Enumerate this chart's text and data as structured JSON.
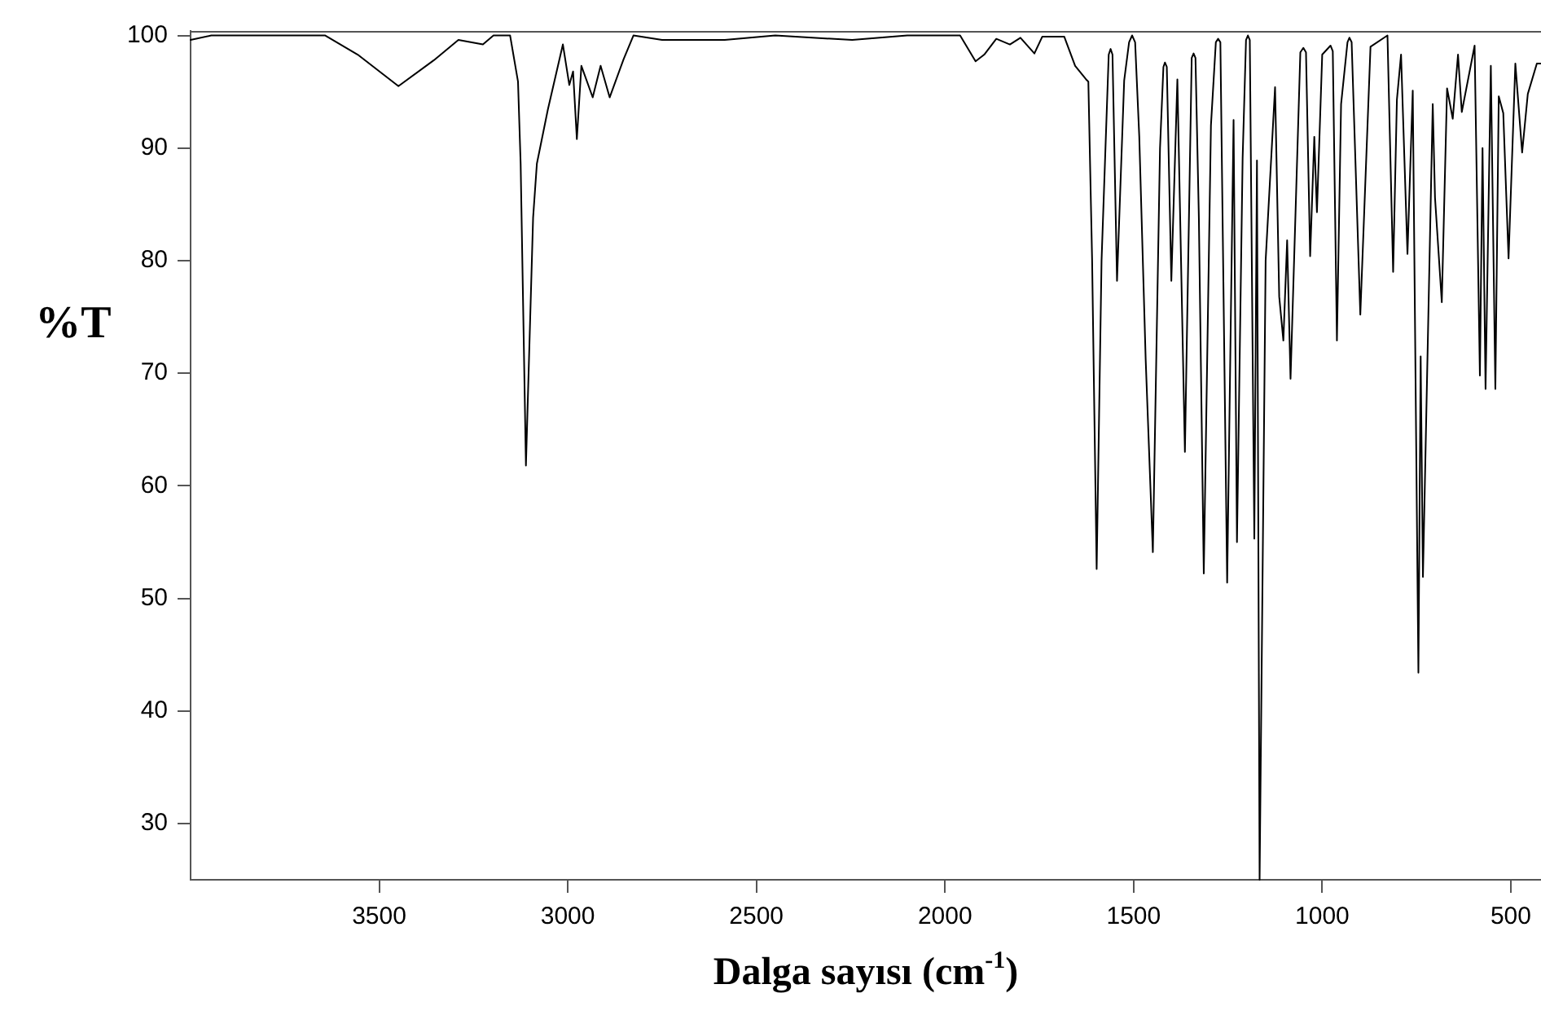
{
  "chart_data": {
    "type": "line",
    "xlabel": "Dalga sayısı (cm$^{-1}$)",
    "ylabel": "%T",
    "xlim": [
      4000,
      420
    ],
    "ylim": [
      25,
      100.4
    ],
    "xticks": [
      3500,
      3000,
      2500,
      2000,
      1500,
      1000,
      500
    ],
    "yticks": [
      30,
      40,
      50,
      60,
      70,
      80,
      90,
      100
    ],
    "grid": false,
    "legend": false,
    "marker": "none",
    "line_style": "solid",
    "series": [
      {
        "color": "#000000",
        "x": [
          4000,
          3945,
          3800,
          3643,
          3557,
          3449,
          3355,
          3290,
          3225,
          3197,
          3153,
          3132,
          3125,
          3111,
          3092,
          3082,
          3053,
          3013,
          2996,
          2986,
          2976,
          2964,
          2934,
          2913,
          2889,
          2852,
          2826,
          2750,
          2654,
          2584,
          2450,
          2246,
          2100,
          1960,
          1919,
          1896,
          1864,
          1828,
          1800,
          1763,
          1742,
          1684,
          1655,
          1626,
          1620,
          1610,
          1598,
          1585,
          1566,
          1561,
          1556,
          1544,
          1525,
          1512,
          1504,
          1496,
          1485,
          1468,
          1449,
          1430,
          1421,
          1417,
          1412,
          1400,
          1384,
          1364,
          1346,
          1341,
          1336,
          1327,
          1314,
          1295,
          1282,
          1276,
          1270,
          1252,
          1235,
          1226,
          1211,
          1202,
          1197,
          1192,
          1180,
          1173,
          1166,
          1150,
          1125,
          1114,
          1103,
          1093,
          1084,
          1058,
          1050,
          1043,
          1032,
          1021,
          1014,
          1000,
          978,
          972,
          961,
          950,
          933,
          928,
          922,
          899,
          872,
          827,
          812,
          802,
          791,
          774,
          760,
          745,
          739,
          733,
          707,
          701,
          683,
          669,
          654,
          640,
          630,
          596,
          582,
          575,
          567,
          553,
          541,
          532,
          520,
          506,
          488,
          470,
          455,
          431,
          421
        ],
        "values": [
          99.6,
          100,
          100,
          100,
          98.3,
          95.5,
          97.8,
          99.6,
          99.2,
          100,
          100,
          95.9,
          88.6,
          61.8,
          83.8,
          88.6,
          93.4,
          99.2,
          95.6,
          96.8,
          90.8,
          97.3,
          94.5,
          97.3,
          94.5,
          97.9,
          100,
          99.6,
          99.6,
          99.6,
          100,
          99.6,
          100,
          100,
          97.7,
          98.3,
          99.7,
          99.2,
          99.8,
          98.4,
          99.9,
          99.9,
          97.3,
          96.1,
          95.9,
          80,
          52.6,
          80,
          98.3,
          98.8,
          98.3,
          78.2,
          96,
          99.4,
          100,
          99.4,
          91,
          71.2,
          54.1,
          90,
          97.2,
          97.6,
          97.2,
          78.2,
          96.1,
          63,
          98,
          98.4,
          98,
          83.8,
          52.2,
          92,
          99.4,
          99.7,
          99.4,
          51.4,
          92.5,
          55,
          89.1,
          99.6,
          100,
          99.6,
          55.3,
          88.9,
          25,
          80,
          95.4,
          76.8,
          72.9,
          81.8,
          69.5,
          98.5,
          98.9,
          98.5,
          80.4,
          91,
          84.3,
          98.3,
          99.1,
          98.6,
          72.9,
          93.9,
          99.4,
          99.8,
          99.4,
          75.2,
          99,
          100,
          79,
          94.3,
          98.3,
          80.6,
          95.1,
          43.4,
          71.5,
          51.9,
          93.9,
          85.6,
          76.3,
          95.3,
          92.6,
          98.3,
          93.2,
          99.1,
          69.8,
          90,
          68.6,
          97.3,
          68.6,
          94.6,
          93.1,
          80.2,
          97.5,
          89.6,
          94.8,
          97.5,
          97.5
        ]
      }
    ]
  }
}
